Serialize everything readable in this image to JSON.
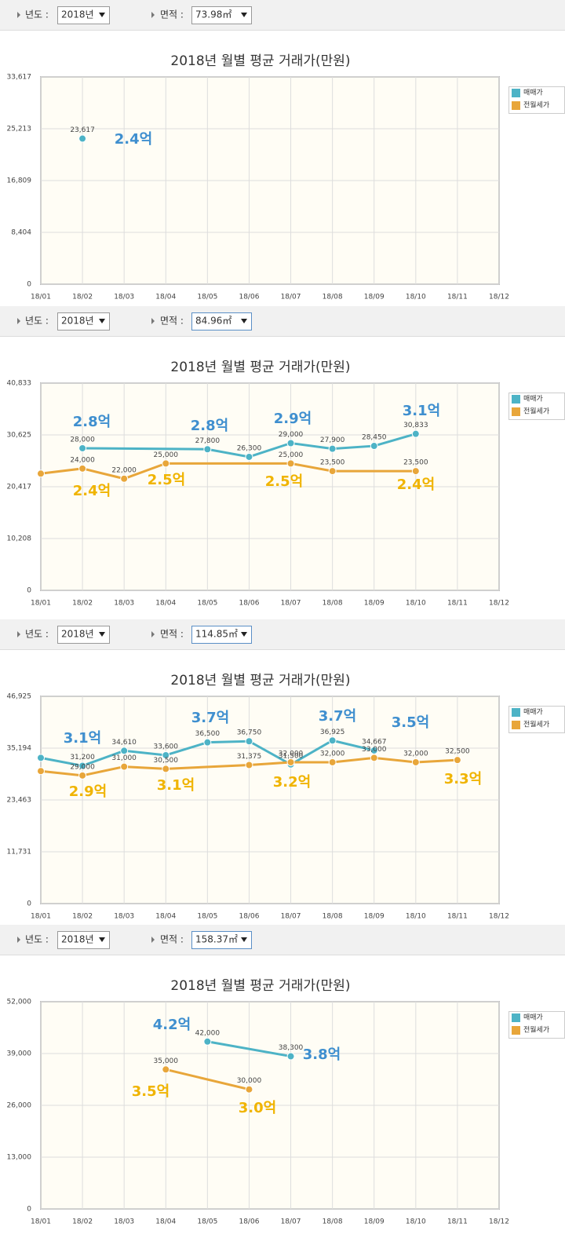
{
  "filters": [
    {
      "year_label": "년도 :",
      "year": "2018년",
      "area_label": "면적 :",
      "area": "73.98㎡"
    },
    {
      "year_label": "년도 :",
      "year": "2018년",
      "area_label": "면적 :",
      "area": "84.96㎡"
    },
    {
      "year_label": "년도 :",
      "year": "2018년",
      "area_label": "면적 :",
      "area": "114.85㎡"
    },
    {
      "year_label": "년도 :",
      "year": "2018년",
      "area_label": "면적 :",
      "area": "158.37㎡"
    }
  ],
  "chart_data": [
    {
      "type": "line",
      "title": "2018년 월별 평균 거래가(만원)",
      "connect_nulls": true,
      "grid": true,
      "legend": "top-right",
      "categories": [
        "18/01",
        "18/02",
        "18/03",
        "18/04",
        "18/05",
        "18/06",
        "18/07",
        "18/08",
        "18/09",
        "18/10",
        "18/11",
        "18/12"
      ],
      "ylim": [
        0,
        33617
      ],
      "yticks": [
        0,
        {
          "value": 8404,
          "label": "8,404"
        },
        {
          "value": 16809,
          "label": "16,809"
        },
        {
          "value": 25213,
          "label": "25,213"
        },
        {
          "value": 33617,
          "label": "33,617"
        }
      ],
      "series": [
        {
          "name": "매매가",
          "color": "#4db3c6",
          "values": [
            null,
            23617,
            null,
            null,
            null,
            null,
            null,
            null,
            null,
            null,
            null,
            null
          ],
          "value_labels": [
            null,
            "23,617",
            null,
            null,
            null,
            null,
            null,
            null,
            null,
            null,
            null,
            null
          ]
        },
        {
          "name": "전월세가",
          "color": "#e8a63a",
          "values": [
            null,
            null,
            null,
            null,
            null,
            null,
            null,
            null,
            null,
            null,
            null,
            null
          ],
          "value_labels": [
            null,
            null,
            null,
            null,
            null,
            null,
            null,
            null,
            null,
            null,
            null,
            null
          ]
        }
      ],
      "annotations": [
        {
          "text": "2.4억",
          "color": "#3f8fcf"
        }
      ]
    },
    {
      "type": "line",
      "title": "2018년 월별 평균 거래가(만원)",
      "connect_nulls": true,
      "grid": true,
      "legend": "top-right",
      "categories": [
        "18/01",
        "18/02",
        "18/03",
        "18/04",
        "18/05",
        "18/06",
        "18/07",
        "18/08",
        "18/09",
        "18/10",
        "18/11",
        "18/12"
      ],
      "ylim": [
        0,
        40833
      ],
      "yticks": [
        0,
        {
          "value": 10208,
          "label": "10,208"
        },
        {
          "value": 20417,
          "label": "20,417"
        },
        {
          "value": 30625,
          "label": "30,625"
        },
        {
          "value": 40833,
          "label": "40,833"
        }
      ],
      "series": [
        {
          "name": "매매가",
          "color": "#4db3c6",
          "values": [
            null,
            28000,
            null,
            null,
            27800,
            26300,
            29000,
            27900,
            28450,
            30833,
            null,
            null
          ],
          "value_labels": [
            null,
            "28,000",
            null,
            null,
            "27,800",
            "26,300",
            "29,000",
            "27,900",
            "28,450",
            "30,833",
            null,
            null
          ]
        },
        {
          "name": "전월세가",
          "color": "#e8a63a",
          "values": [
            23000,
            24000,
            22000,
            25000,
            null,
            null,
            25000,
            23500,
            null,
            23500,
            null,
            null
          ],
          "value_labels": [
            null,
            "24,000",
            "22,000",
            "25,000",
            null,
            null,
            "25,000",
            "23,500",
            null,
            "23,500",
            null,
            null
          ]
        }
      ],
      "annotations": [
        {
          "text": "2.8억",
          "color": "#3f8fcf"
        },
        {
          "text": "2.8억",
          "color": "#3f8fcf"
        },
        {
          "text": "2.9억",
          "color": "#3f8fcf"
        },
        {
          "text": "3.1억",
          "color": "#3f8fcf"
        },
        {
          "text": "2.4억",
          "color": "#f0b400"
        },
        {
          "text": "2.5억",
          "color": "#f0b400"
        },
        {
          "text": "2.5억",
          "color": "#f0b400"
        },
        {
          "text": "2.4억",
          "color": "#f0b400"
        }
      ]
    },
    {
      "type": "line",
      "title": "2018년 월별 평균 거래가(만원)",
      "connect_nulls": true,
      "grid": true,
      "legend": "top-right",
      "categories": [
        "18/01",
        "18/02",
        "18/03",
        "18/04",
        "18/05",
        "18/06",
        "18/07",
        "18/08",
        "18/09",
        "18/10",
        "18/11",
        "18/12"
      ],
      "ylim": [
        0,
        46925
      ],
      "yticks": [
        0,
        {
          "value": 11731,
          "label": "11,731"
        },
        {
          "value": 23463,
          "label": "23,463"
        },
        {
          "value": 35194,
          "label": "35,194"
        },
        {
          "value": 46925,
          "label": "46,925"
        }
      ],
      "series": [
        {
          "name": "매매가",
          "color": "#4db3c6",
          "values": [
            33000,
            31200,
            34610,
            33600,
            36500,
            36750,
            31500,
            36925,
            34667,
            null,
            null,
            null
          ],
          "value_labels": [
            null,
            "31,200",
            "34,610",
            "33,600",
            "36,500",
            "36,750",
            "31,500",
            "36,925",
            "34,667",
            null,
            null,
            null
          ]
        },
        {
          "name": "전월세가",
          "color": "#e8a63a",
          "values": [
            30000,
            29000,
            31000,
            30500,
            null,
            31375,
            32000,
            32000,
            33000,
            32000,
            32500,
            null
          ],
          "value_labels": [
            null,
            "29,000",
            "31,000",
            "30,500",
            null,
            "31,375",
            "32,000",
            "32,000",
            "33,000",
            "32,000",
            "32,500",
            null
          ]
        }
      ],
      "annotations": [
        {
          "text": "3.1억",
          "color": "#3f8fcf"
        },
        {
          "text": "3.7억",
          "color": "#3f8fcf"
        },
        {
          "text": "3.7억",
          "color": "#3f8fcf"
        },
        {
          "text": "3.5억",
          "color": "#3f8fcf"
        },
        {
          "text": "2.9억",
          "color": "#f0b400"
        },
        {
          "text": "3.1억",
          "color": "#f0b400"
        },
        {
          "text": "3.2억",
          "color": "#f0b400"
        },
        {
          "text": "3.3억",
          "color": "#f0b400"
        }
      ]
    },
    {
      "type": "line",
      "title": "2018년 월별 평균 거래가(만원)",
      "connect_nulls": true,
      "grid": true,
      "legend": "top-right",
      "categories": [
        "18/01",
        "18/02",
        "18/03",
        "18/04",
        "18/05",
        "18/06",
        "18/07",
        "18/08",
        "18/09",
        "18/10",
        "18/11",
        "18/12"
      ],
      "ylim": [
        0,
        52000
      ],
      "yticks": [
        0,
        {
          "value": 13000,
          "label": "13,000"
        },
        {
          "value": 26000,
          "label": "26,000"
        },
        {
          "value": 39000,
          "label": "39,000"
        },
        {
          "value": 52000,
          "label": "52,000"
        }
      ],
      "series": [
        {
          "name": "매매가",
          "color": "#4db3c6",
          "values": [
            null,
            null,
            null,
            null,
            42000,
            null,
            38300,
            null,
            null,
            null,
            null,
            null
          ],
          "value_labels": [
            null,
            null,
            null,
            null,
            "42,000",
            null,
            "38,300",
            null,
            null,
            null,
            null,
            null
          ]
        },
        {
          "name": "전월세가",
          "color": "#e8a63a",
          "values": [
            null,
            null,
            null,
            35000,
            null,
            30000,
            null,
            null,
            null,
            null,
            null,
            null
          ],
          "value_labels": [
            null,
            null,
            null,
            "35,000",
            null,
            "30,000",
            null,
            null,
            null,
            null,
            null,
            null
          ]
        }
      ],
      "annotations": [
        {
          "text": "4.2억",
          "color": "#3f8fcf"
        },
        {
          "text": "3.8억",
          "color": "#3f8fcf"
        },
        {
          "text": "3.5억",
          "color": "#f0b400"
        },
        {
          "text": "3.0억",
          "color": "#f0b400"
        }
      ]
    }
  ]
}
